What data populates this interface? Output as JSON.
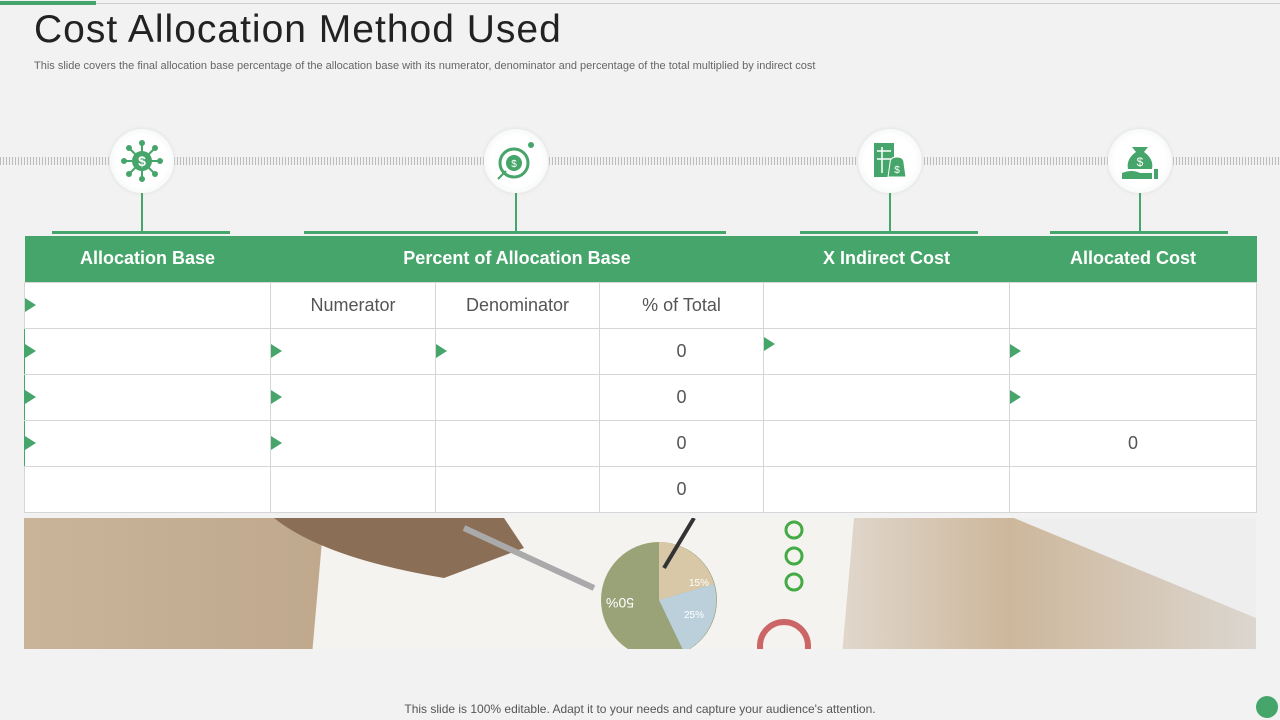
{
  "title": "Cost Allocation Method Used",
  "subtitle": "This slide covers the final allocation base percentage of the allocation base with its numerator, denominator  and percentage of the total multiplied by indirect cost",
  "icons": [
    "dollar-network-icon",
    "dollar-target-icon",
    "invoice-money-bag-icon",
    "hand-money-bag-icon"
  ],
  "table": {
    "headers": [
      "Allocation Base",
      "Percent of Allocation Base",
      "X Indirect Cost",
      "Allocated Cost"
    ],
    "subheaders": [
      "Numerator",
      "Denominator",
      "% of Total"
    ],
    "rows": [
      [
        "",
        "",
        "",
        "0",
        "",
        ""
      ],
      [
        "",
        "",
        "",
        "0",
        "",
        ""
      ],
      [
        "",
        "",
        "",
        "0",
        "",
        "0"
      ],
      [
        "",
        "",
        "",
        "0",
        "",
        ""
      ]
    ]
  },
  "photo_labels": {
    "pie_big": "50%",
    "pie_small1": "15%",
    "pie_small2": "25%"
  },
  "footer": "This slide is 100% editable. Adapt it to your needs and capture your audience's attention.",
  "colors": {
    "accent": "#46a56a"
  }
}
